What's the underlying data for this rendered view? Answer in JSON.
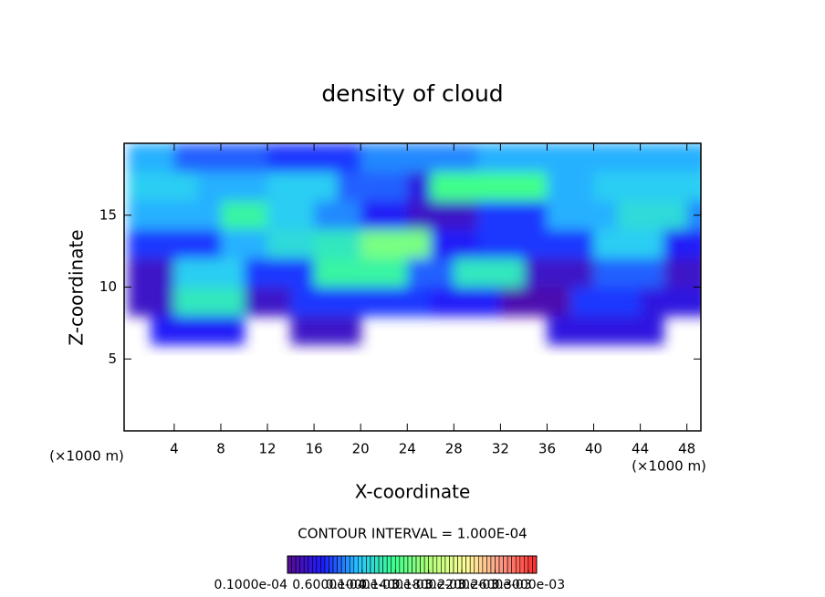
{
  "chart_data": {
    "type": "heatmap",
    "title": "density of cloud",
    "x_label": "X-coordinate",
    "y_label": "Z-coordinate",
    "x_unit_label": "(×1000 m)",
    "y_unit_label": "(×1000 m)",
    "contour_note": "CONTOUR INTERVAL = 1.000E-04",
    "xlim": [
      -0.3,
      49.2
    ],
    "ylim": [
      0,
      20
    ],
    "xticks": [
      4,
      8,
      12,
      16,
      20,
      24,
      28,
      32,
      36,
      40,
      44,
      48
    ],
    "yticks": [
      5,
      10,
      15
    ],
    "x": [
      1,
      3,
      5,
      7,
      9,
      11,
      13,
      15,
      17,
      19,
      21,
      23,
      25,
      27,
      29,
      31,
      33,
      35,
      37,
      39,
      41,
      43,
      45,
      47,
      49
    ],
    "y": [
      19,
      17,
      15,
      13,
      11,
      9,
      7
    ],
    "z": [
      [
        9e-05,
        9e-05,
        7e-05,
        7e-05,
        7e-05,
        7e-05,
        6e-05,
        6e-05,
        6e-05,
        6e-05,
        8e-05,
        8e-05,
        8e-05,
        8e-05,
        8e-05,
        9e-05,
        9e-05,
        9e-05,
        9e-05,
        9e-05,
        9e-05,
        9e-05,
        9e-05,
        9e-05,
        9e-05
      ],
      [
        0.0001,
        0.0001,
        0.0001,
        9e-05,
        9e-05,
        9e-05,
        0.0001,
        0.0001,
        0.0001,
        7e-05,
        7e-05,
        7e-05,
        4e-05,
        0.00014,
        0.00014,
        0.00014,
        0.00014,
        0.00014,
        9e-05,
        9e-05,
        0.0001,
        0.0001,
        0.0001,
        0.0001,
        0.0001
      ],
      [
        9e-05,
        9e-05,
        9e-05,
        9e-05,
        0.00013,
        0.00013,
        0.0001,
        0.0001,
        8e-05,
        8e-05,
        5e-05,
        5e-05,
        3e-05,
        3e-05,
        3e-05,
        6e-05,
        6e-05,
        6e-05,
        9e-05,
        9e-05,
        9e-05,
        0.00011,
        0.00011,
        0.00011,
        8e-05
      ],
      [
        6e-05,
        6e-05,
        6e-05,
        6e-05,
        9e-05,
        9e-05,
        0.00011,
        0.00011,
        0.00012,
        0.00012,
        0.00016,
        0.00016,
        0.00016,
        5e-05,
        5e-05,
        6e-05,
        6e-05,
        6e-05,
        6e-05,
        6e-05,
        0.0001,
        0.0001,
        0.0001,
        5e-05,
        5e-05
      ],
      [
        3e-05,
        3e-05,
        0.0001,
        0.0001,
        0.0001,
        6e-05,
        6e-05,
        6e-05,
        0.00013,
        0.00013,
        0.00013,
        0.00013,
        7e-05,
        7e-05,
        0.00012,
        0.00012,
        0.00012,
        3e-05,
        3e-05,
        3e-05,
        7e-05,
        7e-05,
        7e-05,
        3e-05,
        3e-05
      ],
      [
        3e-05,
        3e-05,
        0.00012,
        0.00012,
        0.00012,
        3e-05,
        3e-05,
        6e-05,
        6e-05,
        6e-05,
        6e-05,
        6e-05,
        6e-05,
        5e-05,
        5e-05,
        5e-05,
        2e-05,
        2e-05,
        2e-05,
        6e-05,
        6e-05,
        6e-05,
        4e-05,
        4e-05,
        4e-05
      ],
      [
        null,
        5e-05,
        5e-05,
        5e-05,
        5e-05,
        null,
        null,
        3e-05,
        3e-05,
        3e-05,
        null,
        null,
        null,
        null,
        null,
        null,
        null,
        null,
        4e-05,
        4e-05,
        4e-05,
        4e-05,
        4e-05,
        null,
        null
      ]
    ],
    "colormap": [
      "#5a0a96",
      "#1c1cff",
      "#28c8ff",
      "#3cff8c",
      "#b4ff78",
      "#ffff99",
      "#ff9a88",
      "#ff2a2a"
    ],
    "clim": [
      1e-05,
      0.00031
    ],
    "colorbar_ticks": [
      {
        "value": 1e-05,
        "label": "0.1000e-04"
      },
      {
        "value": 6e-05,
        "label": "0.6000e-04"
      },
      {
        "value": 0.0001,
        "label": "0.1000e-03"
      },
      {
        "value": 0.00014,
        "label": "0.1400e-03"
      },
      {
        "value": 0.00018,
        "label": "0.1800e-03"
      },
      {
        "value": 0.00022,
        "label": "0.2200e-03"
      },
      {
        "value": 0.00026,
        "label": "0.2600e-03"
      },
      {
        "value": 0.0003,
        "label": "0.3000e-03"
      }
    ]
  }
}
